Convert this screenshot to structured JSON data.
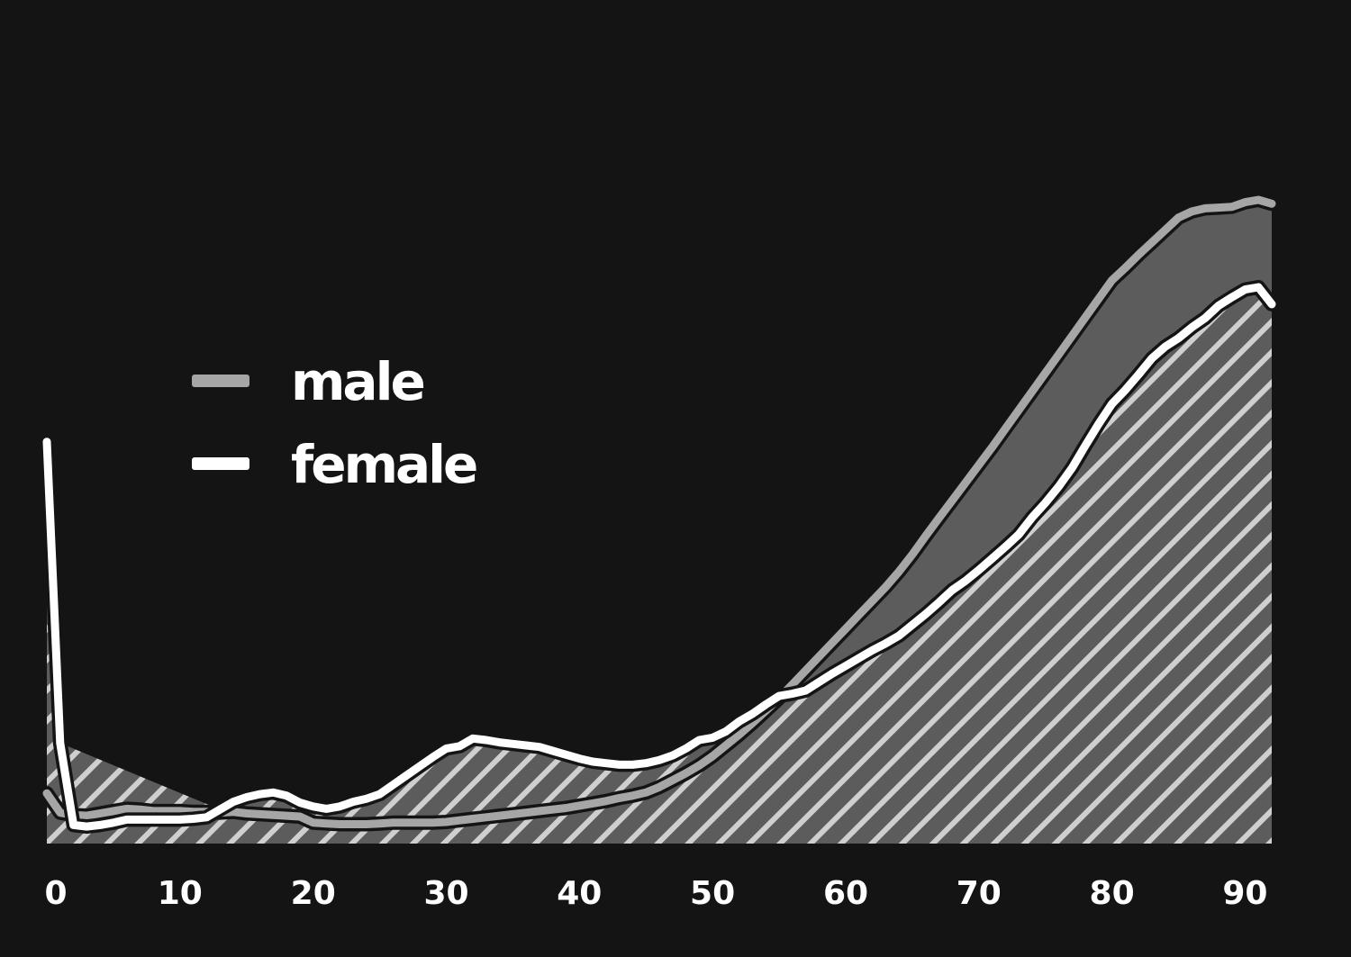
{
  "chart_data": {
    "type": "line",
    "x_ticks": [
      0,
      10,
      20,
      30,
      40,
      50,
      60,
      70,
      80,
      90
    ],
    "xlim": [
      0,
      92
    ],
    "legend": {
      "position": "upper-left"
    },
    "colors": {
      "background": "#141414",
      "male": "#a6a6a6",
      "female": "#ffffff",
      "area_fill": "#5c5c5c",
      "hatch": "#cfcfcf"
    },
    "series": [
      {
        "name": "male",
        "x": [
          0,
          1,
          2,
          3,
          4,
          5,
          6,
          7,
          8,
          9,
          10,
          11,
          12,
          13,
          14,
          15,
          16,
          17,
          18,
          19,
          20,
          21,
          22,
          23,
          24,
          25,
          26,
          27,
          28,
          29,
          30,
          31,
          32,
          33,
          34,
          35,
          36,
          37,
          38,
          39,
          40,
          41,
          42,
          43,
          44,
          45,
          46,
          47,
          48,
          49,
          50,
          51,
          52,
          53,
          54,
          55,
          56,
          57,
          58,
          59,
          60,
          61,
          62,
          63,
          64,
          65,
          66,
          67,
          68,
          69,
          70,
          71,
          72,
          73,
          74,
          75,
          76,
          77,
          78,
          79,
          80,
          81,
          82,
          83,
          84,
          85,
          86,
          87,
          88,
          89,
          90,
          91,
          92
        ],
        "y": [
          0.65,
          0.4,
          0.37,
          0.36,
          0.39,
          0.42,
          0.45,
          0.44,
          0.42,
          0.42,
          0.42,
          0.41,
          0.41,
          0.4,
          0.41,
          0.39,
          0.38,
          0.37,
          0.36,
          0.35,
          0.27,
          0.26,
          0.25,
          0.25,
          0.25,
          0.26,
          0.27,
          0.27,
          0.27,
          0.27,
          0.28,
          0.3,
          0.32,
          0.34,
          0.36,
          0.38,
          0.4,
          0.42,
          0.44,
          0.46,
          0.49,
          0.52,
          0.55,
          0.59,
          0.62,
          0.66,
          0.73,
          0.82,
          0.91,
          1.01,
          1.13,
          1.27,
          1.41,
          1.56,
          1.72,
          1.88,
          2.06,
          2.24,
          2.42,
          2.6,
          2.78,
          2.96,
          3.14,
          3.32,
          3.52,
          3.74,
          3.98,
          4.21,
          4.44,
          4.67,
          4.9,
          5.13,
          5.37,
          5.61,
          5.85,
          6.09,
          6.33,
          6.57,
          6.81,
          7.05,
          7.29,
          7.45,
          7.62,
          7.78,
          7.94,
          8.1,
          8.18,
          8.22,
          8.23,
          8.24,
          8.3,
          8.33,
          8.28
        ]
      },
      {
        "name": "female",
        "x": [
          0,
          1,
          2,
          3,
          4,
          5,
          6,
          7,
          8,
          9,
          10,
          11,
          12,
          13,
          14,
          15,
          16,
          17,
          18,
          19,
          20,
          21,
          22,
          23,
          24,
          25,
          26,
          27,
          28,
          29,
          30,
          31,
          32,
          33,
          34,
          35,
          36,
          37,
          38,
          39,
          40,
          41,
          42,
          43,
          44,
          45,
          46,
          47,
          48,
          49,
          50,
          51,
          52,
          53,
          54,
          55,
          56,
          57,
          58,
          59,
          60,
          61,
          62,
          63,
          64,
          65,
          66,
          67,
          68,
          69,
          70,
          71,
          72,
          73,
          74,
          75,
          76,
          77,
          78,
          79,
          80,
          81,
          82,
          83,
          84,
          85,
          86,
          87,
          88,
          89,
          90,
          91,
          92
        ],
        "y": [
          5.2,
          1.3,
          0.24,
          0.22,
          0.24,
          0.27,
          0.31,
          0.31,
          0.31,
          0.31,
          0.31,
          0.32,
          0.34,
          0.44,
          0.54,
          0.6,
          0.64,
          0.66,
          0.62,
          0.53,
          0.48,
          0.45,
          0.48,
          0.54,
          0.58,
          0.64,
          0.76,
          0.88,
          1.0,
          1.12,
          1.23,
          1.26,
          1.36,
          1.34,
          1.31,
          1.29,
          1.27,
          1.25,
          1.2,
          1.15,
          1.1,
          1.06,
          1.04,
          1.02,
          1.02,
          1.04,
          1.08,
          1.14,
          1.23,
          1.34,
          1.37,
          1.45,
          1.58,
          1.68,
          1.8,
          1.91,
          1.94,
          1.98,
          2.09,
          2.2,
          2.3,
          2.4,
          2.5,
          2.59,
          2.69,
          2.83,
          2.97,
          3.12,
          3.28,
          3.4,
          3.54,
          3.69,
          3.84,
          4.0,
          4.22,
          4.41,
          4.62,
          4.86,
          5.15,
          5.43,
          5.69,
          5.87,
          6.07,
          6.28,
          6.43,
          6.54,
          6.68,
          6.8,
          6.96,
          7.07,
          7.17,
          7.2,
          6.98
        ]
      }
    ]
  }
}
